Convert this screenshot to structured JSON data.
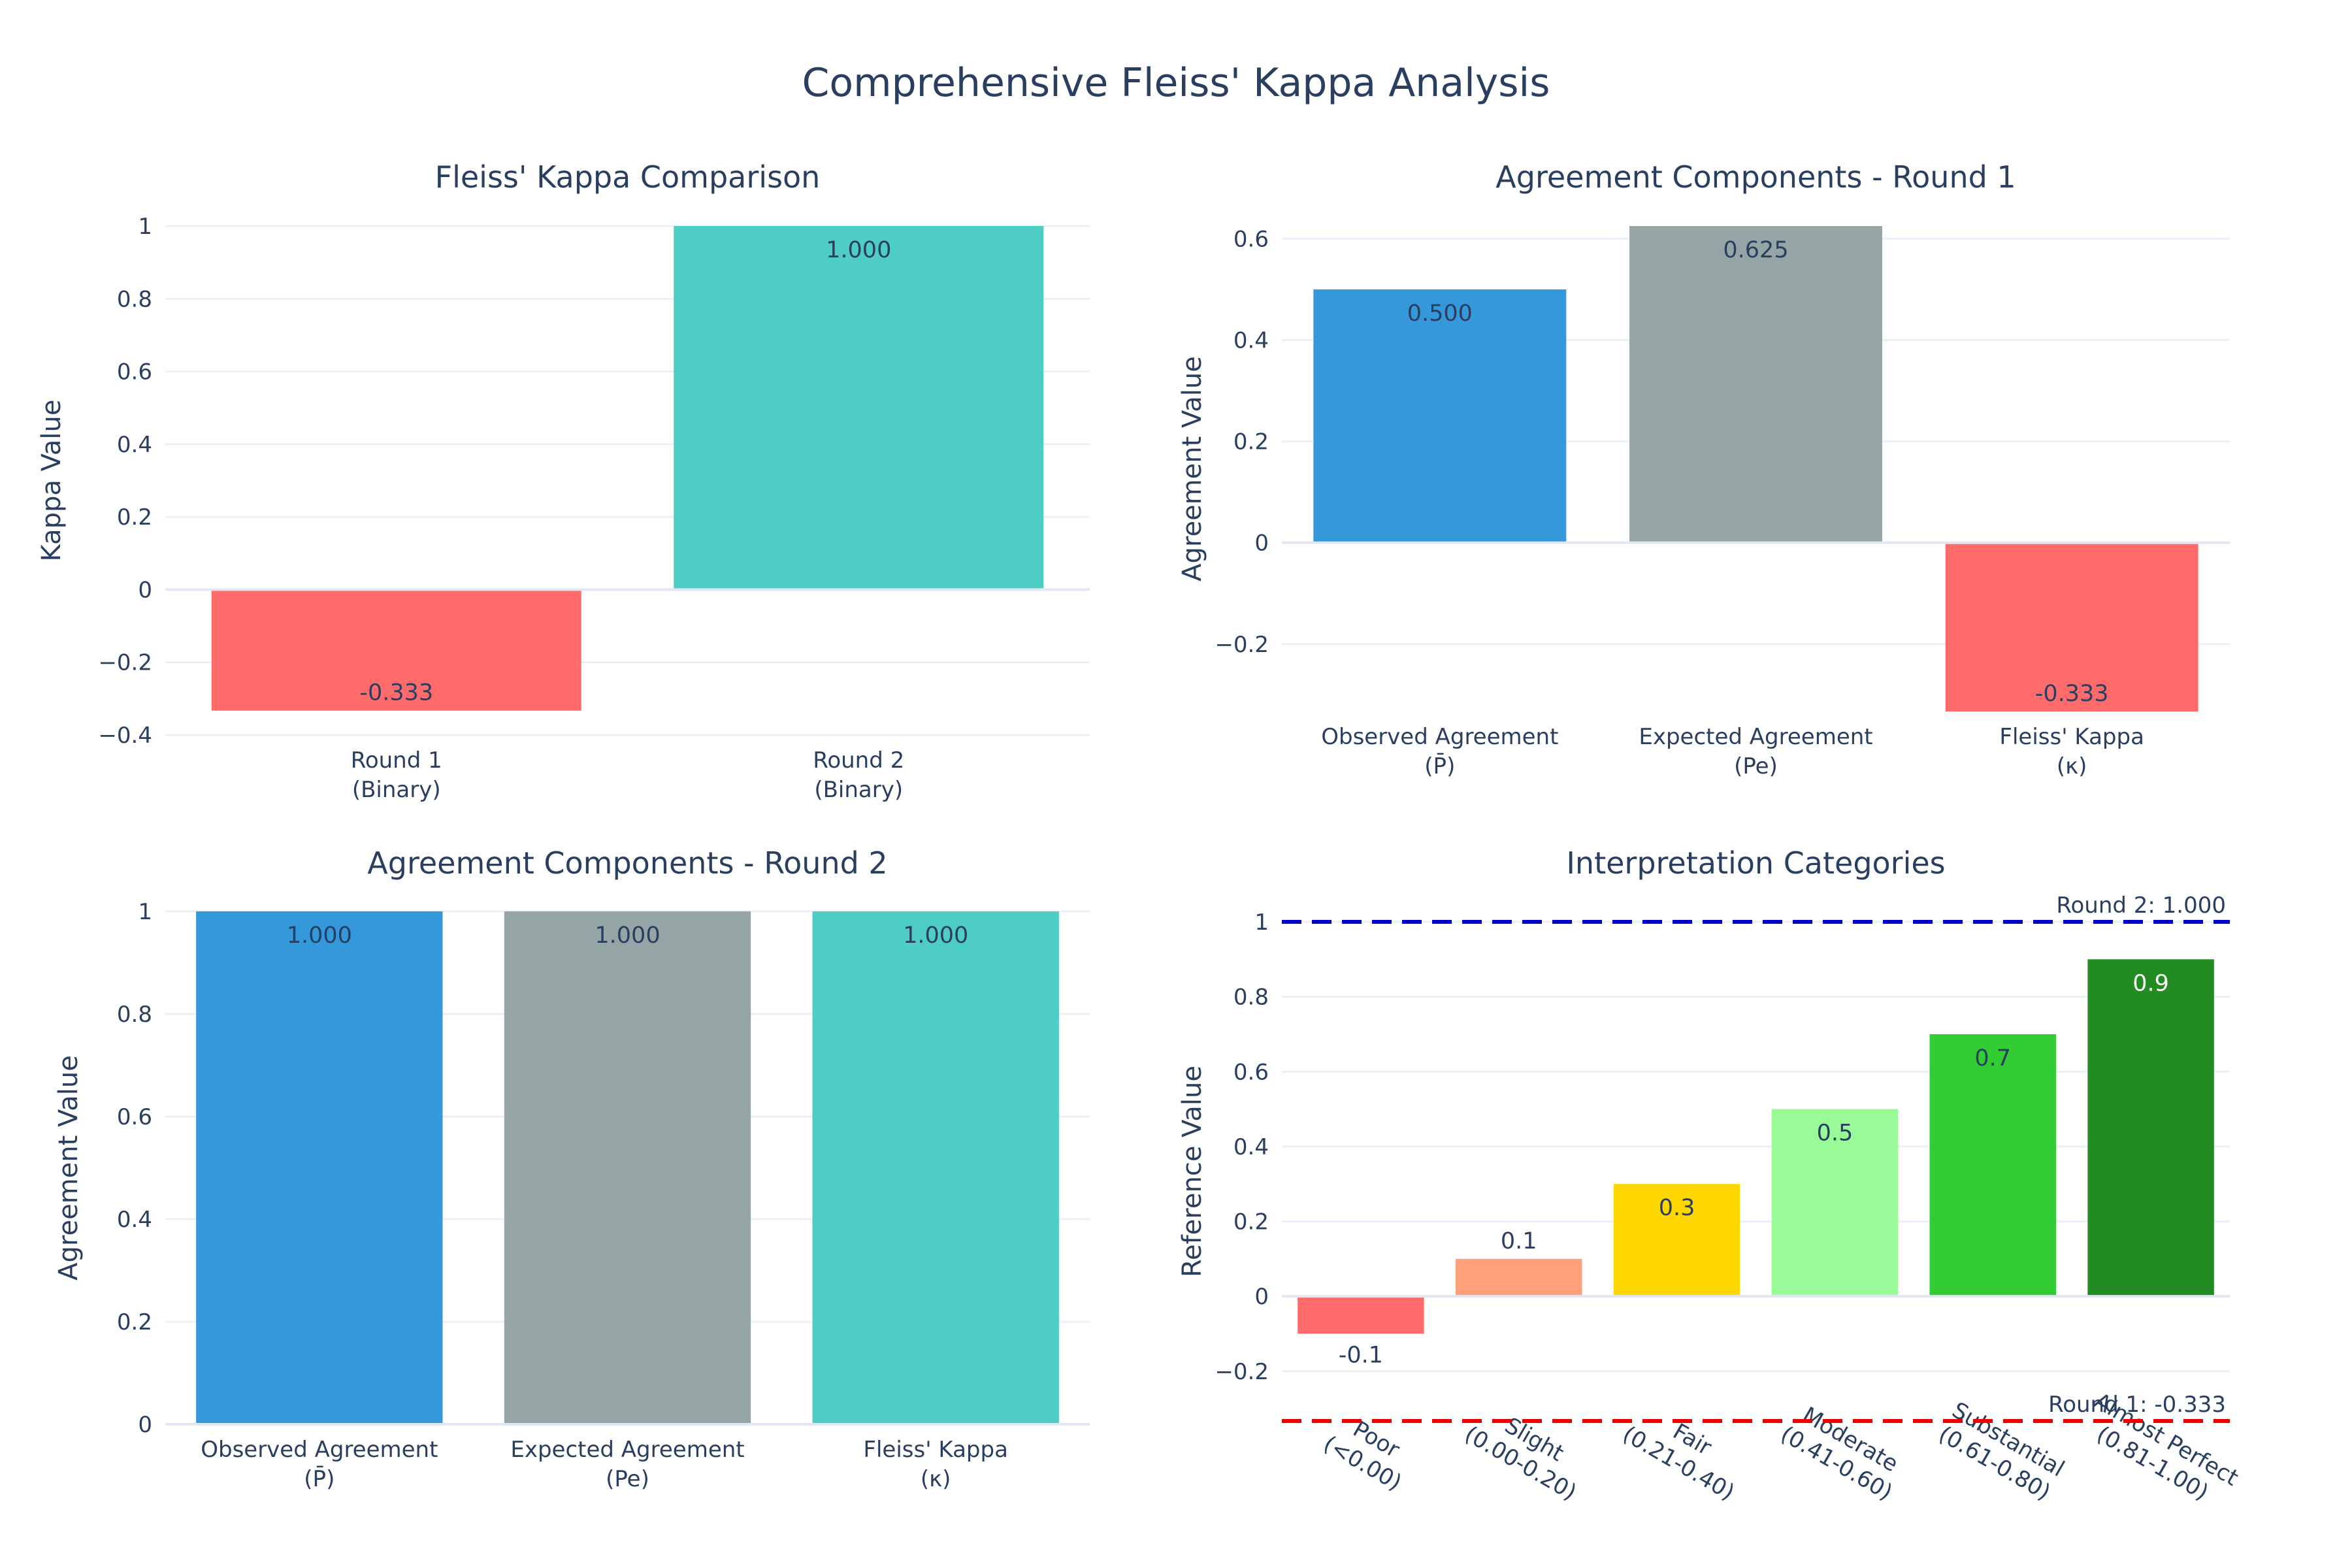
{
  "figure": {
    "title": "Comprehensive Fleiss' Kappa Analysis"
  },
  "chart_data": [
    {
      "id": "kappa-comparison",
      "type": "bar",
      "title": "Fleiss' Kappa Comparison",
      "xlabel": "",
      "ylabel": "Kappa Value",
      "ylim": [
        -0.4,
        1.0
      ],
      "yticks": [
        -0.4,
        -0.2,
        0,
        0.2,
        0.4,
        0.6,
        0.8,
        1
      ],
      "categories": [
        [
          "Round 1",
          "(Binary)"
        ],
        [
          "Round 2",
          "(Binary)"
        ]
      ],
      "values": [
        -0.333,
        1.0
      ],
      "data_labels": [
        "-0.333",
        "1.000"
      ],
      "colors": [
        "#FF6B6B",
        "#4ECDC4"
      ],
      "grid": true,
      "legend": "none"
    },
    {
      "id": "components-round-1",
      "type": "bar",
      "title": "Agreement Components - Round 1",
      "xlabel": "",
      "ylabel": "Agreement Value",
      "ylim": [
        -0.333,
        0.625
      ],
      "yticks": [
        -0.2,
        0,
        0.2,
        0.4,
        0.6
      ],
      "categories": [
        [
          "Observed Agreement",
          "(P̄)"
        ],
        [
          "Expected Agreement",
          "(Pe)"
        ],
        [
          "Fleiss' Kappa",
          "(κ)"
        ]
      ],
      "values": [
        0.5,
        0.625,
        -0.333
      ],
      "data_labels": [
        "0.500",
        "0.625",
        "-0.333"
      ],
      "colors": [
        "#3498DB",
        "#95A5A6",
        "#FF6B6B"
      ],
      "grid": true,
      "legend": "none"
    },
    {
      "id": "components-round-2",
      "type": "bar",
      "title": "Agreement Components - Round 2",
      "xlabel": "",
      "ylabel": "Agreement Value",
      "ylim": [
        0,
        1.0
      ],
      "yticks": [
        0,
        0.2,
        0.4,
        0.6,
        0.8,
        1
      ],
      "categories": [
        [
          "Observed Agreement",
          "(P̄)"
        ],
        [
          "Expected Agreement",
          "(Pe)"
        ],
        [
          "Fleiss' Kappa",
          "(κ)"
        ]
      ],
      "values": [
        1.0,
        1.0,
        1.0
      ],
      "data_labels": [
        "1.000",
        "1.000",
        "1.000"
      ],
      "colors": [
        "#3498DB",
        "#95A5A6",
        "#4ECDC4"
      ],
      "grid": true,
      "legend": "none"
    },
    {
      "id": "interpretation-categories",
      "type": "bar",
      "title": "Interpretation Categories",
      "xlabel": "",
      "ylabel": "Reference Value",
      "ylim": [
        -0.333,
        1.0
      ],
      "yticks": [
        -0.2,
        0,
        0.2,
        0.4,
        0.6,
        0.8,
        1
      ],
      "categories": [
        [
          "Poor",
          "(<0.00)"
        ],
        [
          "Slight",
          "(0.00-0.20)"
        ],
        [
          "Fair",
          "(0.21-0.40)"
        ],
        [
          "Moderate",
          "(0.41-0.60)"
        ],
        [
          "Substantial",
          "(0.61-0.80)"
        ],
        [
          "Almost Perfect",
          "(0.81-1.00)"
        ]
      ],
      "values": [
        -0.1,
        0.1,
        0.3,
        0.5,
        0.7,
        0.9
      ],
      "data_labels": [
        "-0.1",
        "0.1",
        "0.3",
        "0.5",
        "0.7",
        "0.9"
      ],
      "colors": [
        "#FF6B6B",
        "#FFA07A",
        "#FFD700",
        "#98FB98",
        "#32CD32",
        "#228B22"
      ],
      "label_colors": [
        "#2a3f5f",
        "#2a3f5f",
        "#2a3f5f",
        "#2a3f5f",
        "#2a3f5f",
        "#ffffff"
      ],
      "reference_lines": [
        {
          "value": 1.0,
          "label": "Round 2: 1.000",
          "color": "#0000CC"
        },
        {
          "value": -0.333,
          "label": "Round 1: -0.333",
          "color": "#EE0000"
        }
      ],
      "grid": true,
      "legend": "none"
    }
  ]
}
